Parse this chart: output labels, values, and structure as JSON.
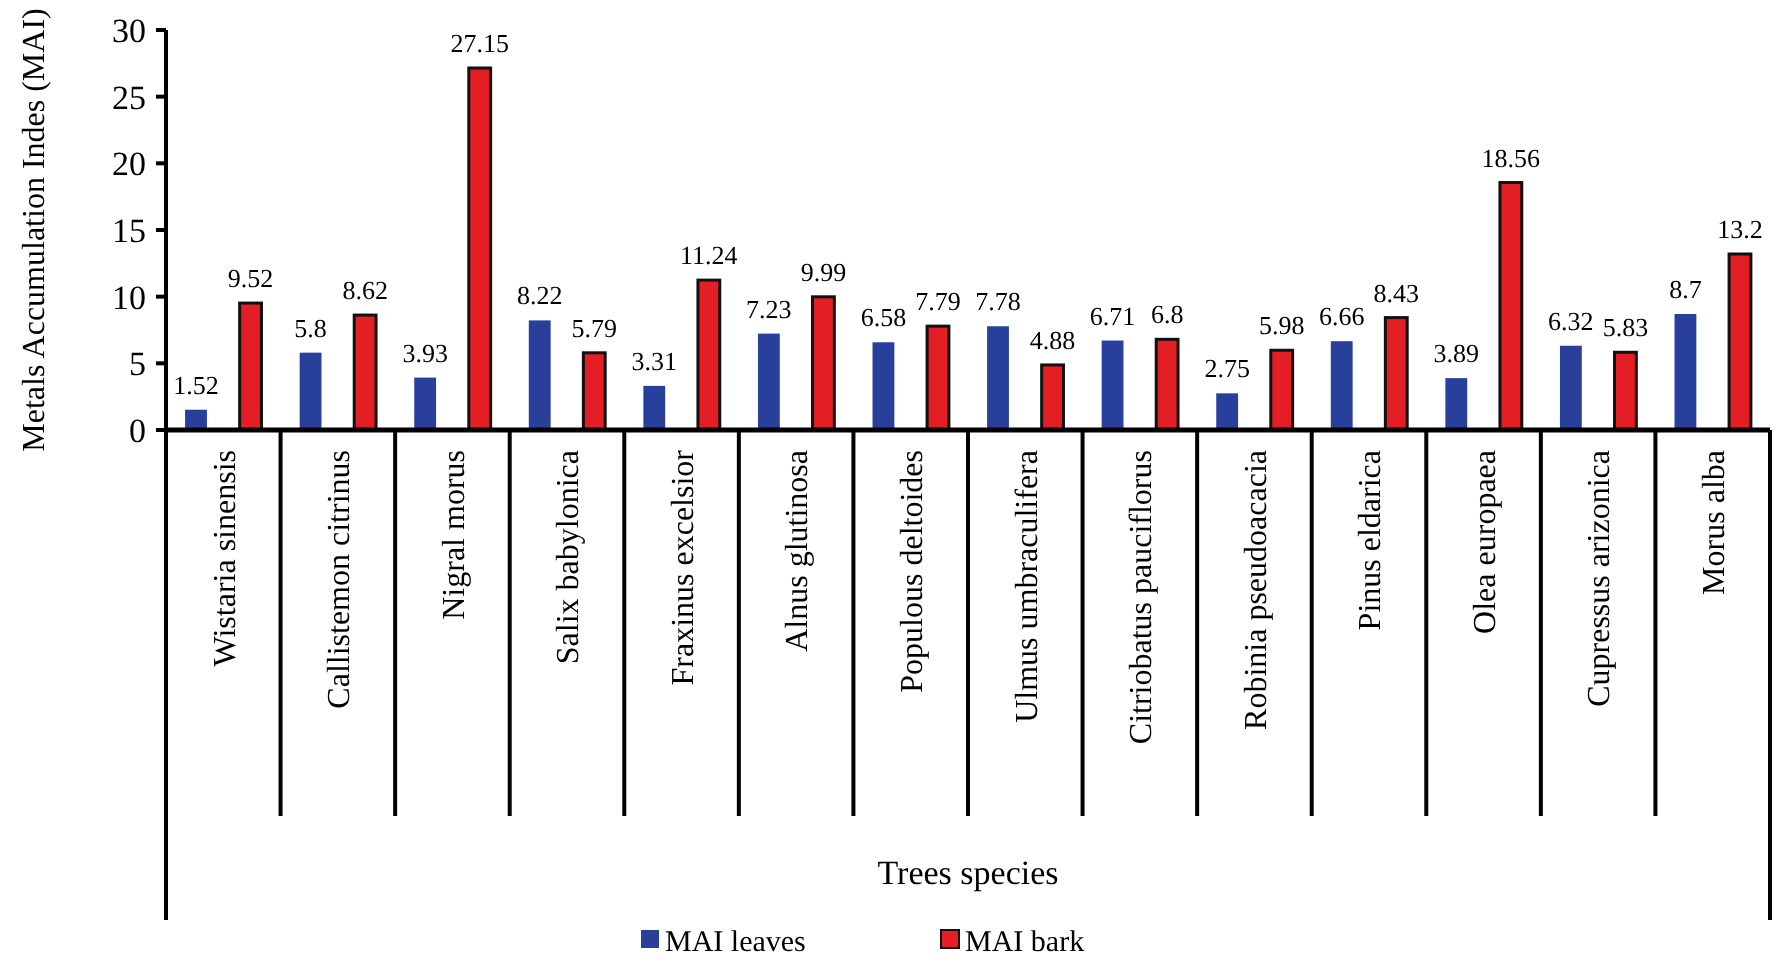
{
  "chart_data": {
    "type": "bar",
    "xlabel": "Trees species",
    "ylabel": "Metals Accumulation Indes (MAI)",
    "categories": [
      "Wistaria sinensis",
      "Callistemon citrinus",
      "Nigral morus",
      "Salix babylonica",
      "Fraxinus excelsior",
      "Alnus glutinosa",
      "Populous deltoides",
      "Ulmus umbraculifera",
      "Citriobatus pauciflorus",
      "Robinia pseudoacacia",
      "Pinus eldarica",
      "Olea europaea",
      "Cupressus arizonica",
      "Morus alba"
    ],
    "series": [
      {
        "name": "MAI leaves",
        "color": "#283f9c",
        "values": [
          1.52,
          5.8,
          3.93,
          8.22,
          3.31,
          7.23,
          6.58,
          7.78,
          6.71,
          2.75,
          6.66,
          3.89,
          6.32,
          8.7
        ]
      },
      {
        "name": "MAI bark",
        "color": "#e31e24",
        "values": [
          9.52,
          8.62,
          27.15,
          5.79,
          11.24,
          9.99,
          7.79,
          4.88,
          6.8,
          5.98,
          8.43,
          18.56,
          5.83,
          13.2
        ]
      }
    ],
    "ylim": [
      0,
      30
    ],
    "yticks": [
      0,
      5,
      10,
      15,
      20,
      25,
      30
    ],
    "data_labels": true,
    "legend": "bottom",
    "grid": false
  }
}
